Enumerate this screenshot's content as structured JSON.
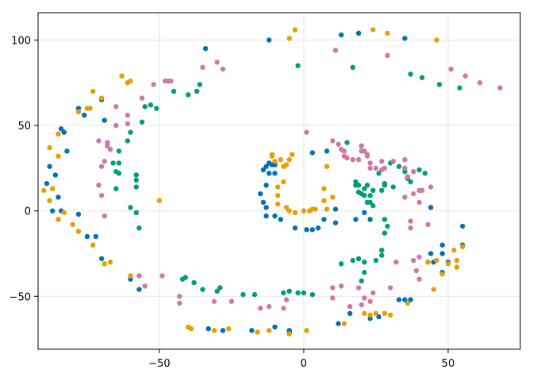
{
  "chart_data": {
    "type": "scatter",
    "title": "",
    "xlabel": "",
    "ylabel": "",
    "xlim": [
      -92,
      75
    ],
    "ylim": [
      -81,
      116
    ],
    "grid": true,
    "legend": "none",
    "x_ticks": [
      {
        "v": -50,
        "label": "−50"
      },
      {
        "v": 0,
        "label": "0"
      },
      {
        "v": 50,
        "label": "50"
      }
    ],
    "y_ticks": [
      {
        "v": -50,
        "label": "−50"
      },
      {
        "v": 0,
        "label": "0"
      },
      {
        "v": 50,
        "label": "50"
      },
      {
        "v": 100,
        "label": "100"
      }
    ],
    "colors": {
      "blue": "#0072b2",
      "orange": "#e69f00",
      "green": "#009e73",
      "pink": "#cc79a7",
      "grid": "#e6e6e6",
      "frame": "#000000"
    },
    "series": [
      {
        "color": "#0072b2",
        "points": [
          [
            -12,
            100
          ],
          [
            -34,
            95
          ],
          [
            13,
            103
          ],
          [
            19,
            104
          ],
          [
            35,
            101
          ],
          [
            -70,
            65
          ],
          [
            -78,
            60
          ],
          [
            -76,
            56
          ],
          [
            -69,
            53
          ],
          [
            -84,
            48
          ],
          [
            -83,
            46
          ],
          [
            -82,
            35
          ],
          [
            -88,
            26
          ],
          [
            -86,
            21
          ],
          [
            -89,
            16
          ],
          [
            -85,
            8
          ],
          [
            -87,
            0
          ],
          [
            -84,
            0
          ],
          [
            -85,
            -5
          ],
          [
            -78,
            -2
          ],
          [
            -75,
            -15
          ],
          [
            -72,
            -15
          ],
          [
            -70,
            -28
          ],
          [
            -60,
            -40
          ],
          [
            -57,
            -46
          ],
          [
            -33,
            -69
          ],
          [
            -28,
            -70
          ],
          [
            -18,
            -70
          ],
          [
            -10,
            -68
          ],
          [
            -5,
            -70
          ],
          [
            -5,
            -71
          ],
          [
            12,
            -66
          ],
          [
            16,
            -60
          ],
          [
            23,
            -63
          ],
          [
            26,
            -62
          ],
          [
            33,
            -52
          ],
          [
            35,
            -52
          ],
          [
            37,
            -52
          ],
          [
            43,
            -30
          ],
          [
            45,
            -30
          ],
          [
            50,
            -30
          ],
          [
            48,
            -25
          ],
          [
            55,
            -20
          ],
          [
            55,
            -9
          ],
          [
            48,
            -20
          ],
          [
            44,
            -25
          ],
          [
            48,
            -36
          ],
          [
            44,
            2
          ],
          [
            -12,
            28
          ],
          [
            -11,
            27
          ],
          [
            -10,
            27
          ],
          [
            -13,
            26
          ],
          [
            -14,
            24
          ],
          [
            -12,
            22
          ],
          [
            -10,
            22
          ],
          [
            -13,
            15
          ],
          [
            -15,
            10
          ],
          [
            -14,
            5
          ],
          [
            -13,
            2
          ],
          [
            -13,
            -3
          ],
          [
            -10,
            -3
          ],
          [
            -8,
            -5
          ],
          [
            -3,
            -10
          ],
          [
            1,
            -11
          ],
          [
            3,
            -11
          ],
          [
            11,
            -7
          ],
          [
            18,
            -5
          ],
          [
            23,
            -5
          ],
          [
            21,
            -1
          ],
          [
            11,
            1
          ],
          [
            3,
            34
          ],
          [
            8,
            35
          ],
          [
            7,
            -5
          ],
          [
            5,
            -10
          ]
        ]
      },
      {
        "color": "#e69f00",
        "points": [
          [
            -50,
            6
          ],
          [
            -5,
            101
          ],
          [
            -3,
            106
          ],
          [
            24,
            106
          ],
          [
            29,
            104
          ],
          [
            46,
            100
          ],
          [
            -63,
            79
          ],
          [
            -61,
            75
          ],
          [
            -60,
            76
          ],
          [
            -73,
            70
          ],
          [
            -70,
            66
          ],
          [
            -78,
            58
          ],
          [
            -75,
            60
          ],
          [
            -74,
            60
          ],
          [
            -88,
            37
          ],
          [
            -85,
            45
          ],
          [
            -85,
            32
          ],
          [
            -90,
            12
          ],
          [
            -88,
            6
          ],
          [
            -87,
            13
          ],
          [
            -83,
            -1
          ],
          [
            -85,
            -5
          ],
          [
            -80,
            -8
          ],
          [
            -78,
            -12
          ],
          [
            -73,
            -20
          ],
          [
            -69,
            -31
          ],
          [
            -67,
            -30
          ],
          [
            -60,
            -38
          ],
          [
            -40,
            -68
          ],
          [
            -39,
            -69
          ],
          [
            -31,
            -70
          ],
          [
            -26,
            -69
          ],
          [
            -16,
            -71
          ],
          [
            -12,
            -70
          ],
          [
            -5,
            -72
          ],
          [
            1,
            -70
          ],
          [
            14,
            -66
          ],
          [
            21,
            -60
          ],
          [
            23,
            -61
          ],
          [
            25,
            -60
          ],
          [
            28,
            -60
          ],
          [
            30,
            -61
          ],
          [
            43,
            -30
          ],
          [
            48,
            -37
          ],
          [
            46,
            -29
          ],
          [
            53,
            -29
          ],
          [
            53,
            -33
          ],
          [
            55,
            -21
          ],
          [
            52,
            -23
          ],
          [
            50,
            -31
          ],
          [
            45,
            -46
          ],
          [
            36,
            -54
          ],
          [
            -10,
            29
          ],
          [
            -7,
            26
          ],
          [
            -7,
            17
          ],
          [
            -9,
            14
          ],
          [
            -9,
            9
          ],
          [
            -9,
            4
          ],
          [
            -6,
            2
          ],
          [
            -5,
            0
          ],
          [
            -3,
            -1
          ],
          [
            0,
            0
          ],
          [
            2,
            0
          ],
          [
            3,
            1
          ],
          [
            4,
            1
          ],
          [
            8,
            1
          ],
          [
            10,
            8
          ],
          [
            7,
            6
          ],
          [
            7,
            13
          ],
          [
            -5,
            30
          ],
          [
            -8,
            30
          ],
          [
            -11,
            33
          ],
          [
            -4,
            33
          ],
          [
            -6,
            27
          ],
          [
            -11,
            32
          ],
          [
            8,
            26
          ]
        ]
      },
      {
        "color": "#009e73",
        "points": [
          [
            -2,
            85
          ],
          [
            17,
            84
          ],
          [
            37,
            80
          ],
          [
            41,
            78
          ],
          [
            47,
            74
          ],
          [
            54,
            72
          ],
          [
            -45,
            70
          ],
          [
            -40,
            68
          ],
          [
            -36,
            74
          ],
          [
            -37,
            70
          ],
          [
            -55,
            61
          ],
          [
            -53,
            62
          ],
          [
            -51,
            60
          ],
          [
            -56,
            52
          ],
          [
            -60,
            46
          ],
          [
            -61,
            41
          ],
          [
            -64,
            35
          ],
          [
            -64,
            28
          ],
          [
            -66,
            28
          ],
          [
            -65,
            23
          ],
          [
            -64,
            22
          ],
          [
            -58,
            21
          ],
          [
            -58,
            18
          ],
          [
            -58,
            14
          ],
          [
            -65,
            13
          ],
          [
            -60,
            2
          ],
          [
            -58,
            -1
          ],
          [
            -57,
            -10
          ],
          [
            -42,
            -40
          ],
          [
            -41,
            -39
          ],
          [
            -38,
            -42
          ],
          [
            -35,
            -46
          ],
          [
            -30,
            -47
          ],
          [
            -29,
            -45
          ],
          [
            -21,
            -49
          ],
          [
            -17,
            -49
          ],
          [
            -5,
            -47
          ],
          [
            -7,
            -48
          ],
          [
            -2,
            -48
          ],
          [
            0,
            -48
          ],
          [
            3,
            -49
          ],
          [
            13,
            -31
          ],
          [
            17,
            -29
          ],
          [
            19,
            -28
          ],
          [
            20,
            -41
          ],
          [
            21,
            -36
          ],
          [
            21,
            -30
          ],
          [
            27,
            -26
          ],
          [
            25,
            -29
          ],
          [
            27,
            -23
          ],
          [
            28,
            -13
          ],
          [
            28,
            -5
          ],
          [
            29,
            -9
          ],
          [
            15,
            40
          ],
          [
            20,
            38
          ],
          [
            18,
            17
          ],
          [
            18,
            15
          ],
          [
            19,
            15
          ],
          [
            19,
            11
          ],
          [
            20,
            10
          ],
          [
            21,
            9
          ],
          [
            21,
            13
          ],
          [
            22,
            15
          ],
          [
            23,
            9
          ],
          [
            23,
            5
          ],
          [
            22,
            5
          ],
          [
            24,
            3
          ],
          [
            24,
            12
          ],
          [
            27,
            12
          ],
          [
            28,
            15
          ],
          [
            28,
            16
          ],
          [
            31,
            14
          ],
          [
            26,
            22
          ],
          [
            30,
            28
          ],
          [
            33,
            26
          ],
          [
            35,
            23
          ],
          [
            36,
            19
          ],
          [
            37,
            17
          ],
          [
            40,
            24
          ],
          [
            42,
            22
          ]
        ]
      },
      {
        "color": "#cc79a7",
        "points": [
          [
            11,
            94
          ],
          [
            29,
            91
          ],
          [
            -30,
            87
          ],
          [
            -28,
            83
          ],
          [
            -35,
            84
          ],
          [
            51,
            83
          ],
          [
            56,
            79
          ],
          [
            61,
            75
          ],
          [
            68,
            72
          ],
          [
            -48,
            76
          ],
          [
            -47,
            76
          ],
          [
            -46,
            76
          ],
          [
            -52,
            74
          ],
          [
            -56,
            66
          ],
          [
            -65,
            61
          ],
          [
            -61,
            56
          ],
          [
            -61,
            51
          ],
          [
            -65,
            50
          ],
          [
            -71,
            41
          ],
          [
            -68,
            40
          ],
          [
            -68,
            38
          ],
          [
            -67,
            36
          ],
          [
            -69,
            29
          ],
          [
            -70,
            26
          ],
          [
            -71,
            15
          ],
          [
            -70,
            9
          ],
          [
            -69,
            -3
          ],
          [
            -49,
            -38
          ],
          [
            -57,
            -38
          ],
          [
            -55,
            -44
          ],
          [
            -43,
            -50
          ],
          [
            -43,
            -54
          ],
          [
            -31,
            -53
          ],
          [
            -25,
            -53
          ],
          [
            -15,
            -57
          ],
          [
            -12,
            -56
          ],
          [
            -7,
            -57
          ],
          [
            -6,
            -52
          ],
          [
            10,
            -45
          ],
          [
            10,
            -51
          ],
          [
            13,
            -44
          ],
          [
            16,
            -56
          ],
          [
            19,
            -45
          ],
          [
            24,
            -48
          ],
          [
            21,
            -51
          ],
          [
            20,
            -55
          ],
          [
            23,
            -53
          ],
          [
            30,
            -45
          ],
          [
            32,
            -30
          ],
          [
            40,
            -27
          ],
          [
            38,
            -29
          ],
          [
            40,
            -40
          ],
          [
            39,
            -35
          ],
          [
            1,
            46
          ],
          [
            10,
            41
          ],
          [
            12,
            39
          ],
          [
            13,
            36
          ],
          [
            14,
            35
          ],
          [
            14,
            32
          ],
          [
            15,
            31
          ],
          [
            17,
            30
          ],
          [
            19,
            30
          ],
          [
            20,
            35
          ],
          [
            20,
            38
          ],
          [
            21,
            35
          ],
          [
            22,
            33
          ],
          [
            22,
            32
          ],
          [
            23,
            28
          ],
          [
            23,
            25
          ],
          [
            25,
            25
          ],
          [
            27,
            24
          ],
          [
            28,
            25
          ],
          [
            27,
            29
          ],
          [
            31,
            29
          ],
          [
            35,
            30
          ],
          [
            35,
            25
          ],
          [
            38,
            23
          ],
          [
            36,
            20
          ],
          [
            40,
            12
          ],
          [
            38,
            10
          ],
          [
            40,
            5
          ],
          [
            41,
            12
          ],
          [
            44,
            14
          ],
          [
            35,
            8
          ],
          [
            37,
            -6
          ],
          [
            37,
            -10
          ],
          [
            43,
            -8
          ]
        ]
      }
    ]
  }
}
